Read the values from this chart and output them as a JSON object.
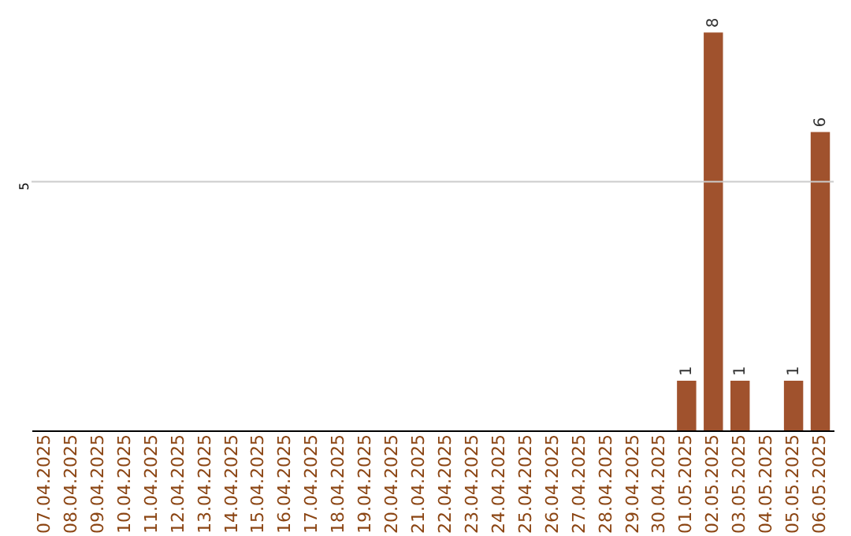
{
  "chart_data": {
    "type": "bar",
    "categories": [
      "07.04.2025",
      "08.04.2025",
      "09.04.2025",
      "10.04.2025",
      "11.04.2025",
      "12.04.2025",
      "13.04.2025",
      "14.04.2025",
      "15.04.2025",
      "16.04.2025",
      "17.04.2025",
      "18.04.2025",
      "19.04.2025",
      "20.04.2025",
      "21.04.2025",
      "22.04.2025",
      "23.04.2025",
      "24.04.2025",
      "25.04.2025",
      "26.04.2025",
      "27.04.2025",
      "28.04.2025",
      "29.04.2025",
      "30.04.2025",
      "01.05.2025",
      "02.05.2025",
      "03.05.2025",
      "04.05.2025",
      "05.05.2025",
      "06.05.2025"
    ],
    "values": [
      null,
      null,
      null,
      null,
      null,
      null,
      null,
      null,
      null,
      null,
      null,
      null,
      null,
      null,
      null,
      null,
      null,
      null,
      null,
      null,
      null,
      null,
      null,
      null,
      1,
      8,
      1,
      null,
      1,
      6
    ],
    "color": "#a0522d",
    "data_labels": true,
    "ref_lines": [
      {
        "axis": "y",
        "value": 5,
        "label": "5",
        "color": "#cccccc"
      }
    ]
  }
}
